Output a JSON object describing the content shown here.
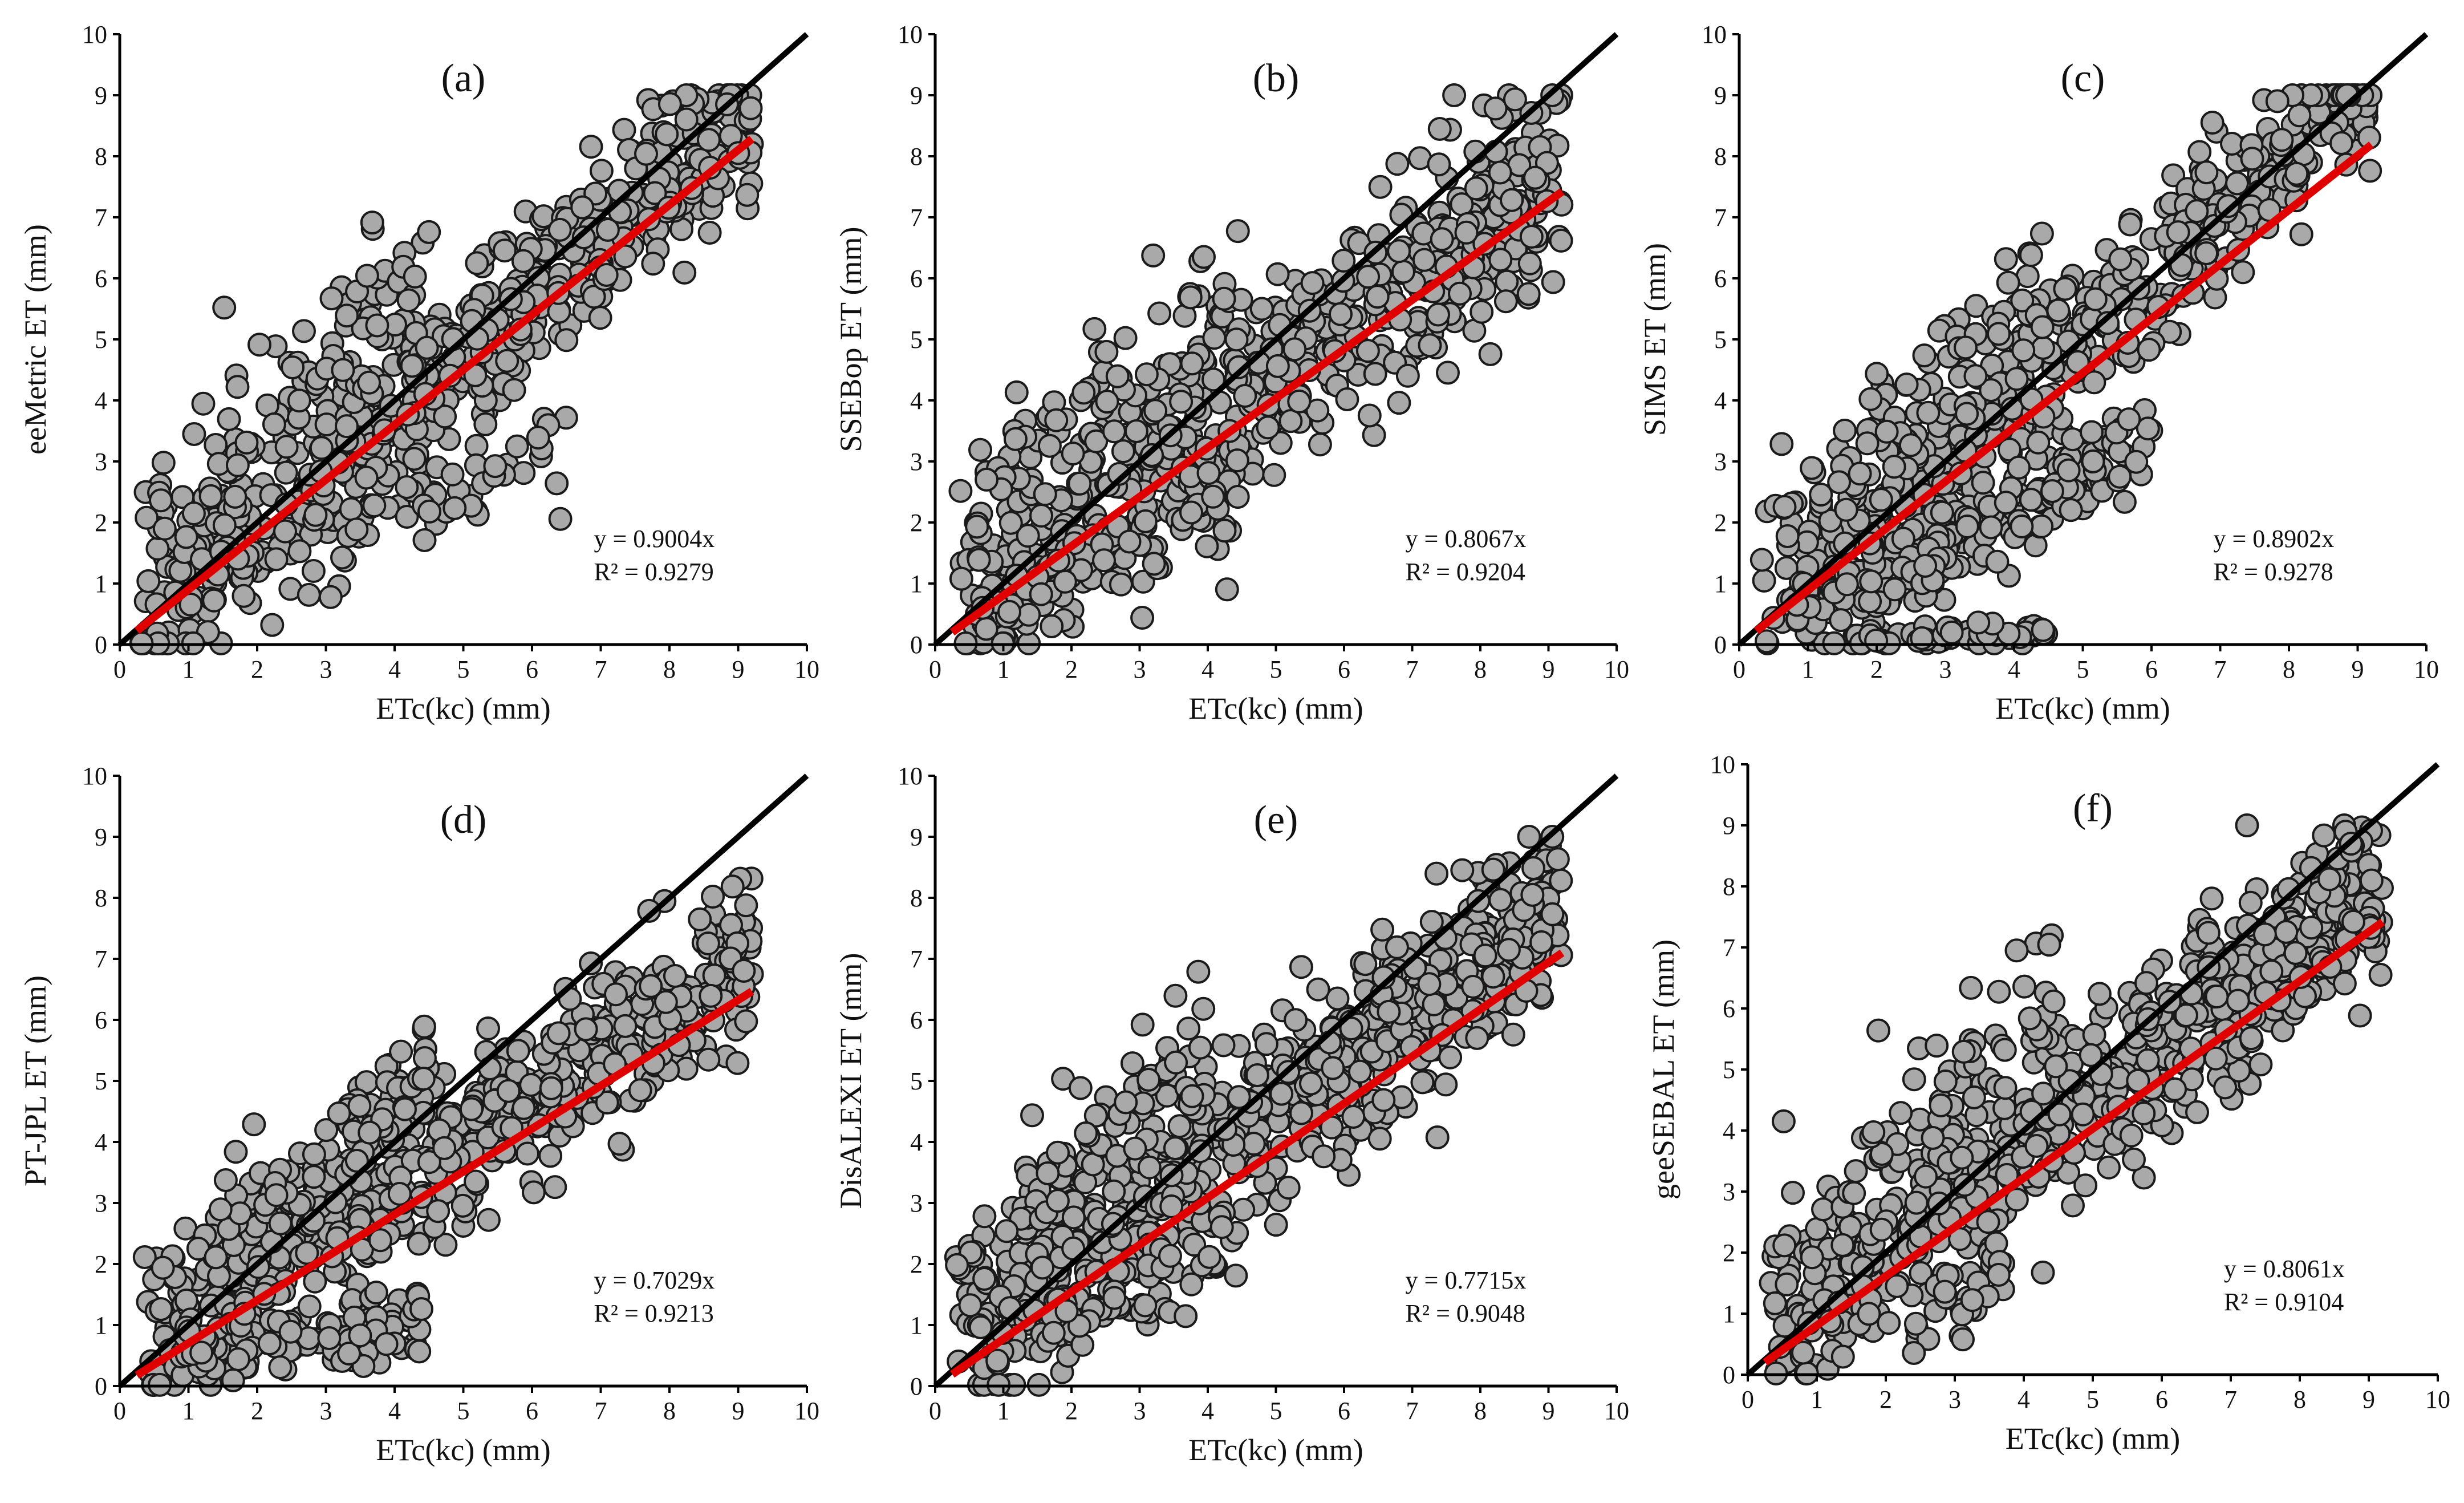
{
  "figure": {
    "background": "#ffffff",
    "marker_fill": "#a9a9a9",
    "marker_edge": "#1a1a1a",
    "fit_color": "#e00000",
    "line_color": "#000000"
  },
  "chart_data": [
    {
      "panel": "(a)",
      "type": "scatter",
      "ylabel": "eeMetric ET (mm)",
      "xlabel": "ETc(kc) (mm)",
      "xlim": [
        0,
        10
      ],
      "ylim": [
        0,
        10
      ],
      "xticks": [
        "0",
        "1",
        "2",
        "3",
        "4",
        "5",
        "6",
        "7",
        "8",
        "9",
        "10"
      ],
      "yticks": [
        "0",
        "1",
        "2",
        "3",
        "4",
        "5",
        "6",
        "7",
        "8",
        "9",
        "10"
      ],
      "fit_slope": 0.9004,
      "fit_xmax": 9.2,
      "equation": "y = 0.9004x",
      "r2": "R² = 0.9279",
      "n_points": 750,
      "seed": 11,
      "cloud": [
        {
          "frac": 0.78,
          "m": 0.93,
          "b": 0.15,
          "sd": 0.75,
          "xmin": 0.3,
          "xmax": 9.2
        },
        {
          "frac": 0.14,
          "m": 0.95,
          "b": 1.6,
          "sd": 0.8,
          "xmin": 0.3,
          "xmax": 4.5
        },
        {
          "frac": 0.08,
          "m": 0.45,
          "b": 0.3,
          "sd": 0.4,
          "xmin": 1.0,
          "xmax": 6.5
        }
      ]
    },
    {
      "panel": "(b)",
      "type": "scatter",
      "ylabel": "SSEBop ET  (mm)",
      "xlabel": "ETc(kc) (mm)",
      "xlim": [
        0,
        10
      ],
      "ylim": [
        0,
        10
      ],
      "xticks": [
        "0",
        "1",
        "2",
        "3",
        "4",
        "5",
        "6",
        "7",
        "8",
        "9",
        "10"
      ],
      "yticks": [
        "0",
        "1",
        "2",
        "3",
        "4",
        "5",
        "6",
        "7",
        "8",
        "9",
        "10"
      ],
      "fit_slope": 0.8067,
      "fit_xmax": 9.2,
      "equation": "y = 0.8067x",
      "r2": "R² = 0.9204",
      "n_points": 750,
      "seed": 23,
      "cloud": [
        {
          "frac": 0.8,
          "m": 0.82,
          "b": 0.3,
          "sd": 0.8,
          "xmin": 0.3,
          "xmax": 9.2
        },
        {
          "frac": 0.12,
          "m": 0.9,
          "b": 1.7,
          "sd": 0.8,
          "xmin": 0.3,
          "xmax": 4.5
        },
        {
          "frac": 0.08,
          "m": 0.5,
          "b": 0.3,
          "sd": 0.4,
          "xmin": 0.5,
          "xmax": 4.5
        }
      ]
    },
    {
      "panel": "(c)",
      "type": "scatter",
      "ylabel": "SIMS ET  (mm)",
      "xlabel": "ETc(kc) (mm)",
      "xlim": [
        0,
        10
      ],
      "ylim": [
        0,
        10
      ],
      "xticks": [
        "0",
        "1",
        "2",
        "3",
        "4",
        "5",
        "6",
        "7",
        "8",
        "9",
        "10"
      ],
      "yticks": [
        "0",
        "1",
        "2",
        "3",
        "4",
        "5",
        "6",
        "7",
        "8",
        "9",
        "10"
      ],
      "fit_slope": 0.8902,
      "fit_xmax": 9.2,
      "equation": "y = 0.8902x",
      "r2": "R² = 0.9278",
      "n_points": 800,
      "seed": 37,
      "cloud": [
        {
          "frac": 0.55,
          "m": 1.0,
          "b": 0.0,
          "sd": 0.6,
          "xmin": 0.3,
          "xmax": 9.2
        },
        {
          "frac": 0.12,
          "m": 1.0,
          "b": 1.4,
          "sd": 0.55,
          "xmin": 0.3,
          "xmax": 4.5
        },
        {
          "frac": 0.18,
          "m": 0.6,
          "b": -0.2,
          "sd": 0.4,
          "xmin": 1.5,
          "xmax": 6.0
        },
        {
          "frac": 0.08,
          "m": 0.03,
          "b": 0.05,
          "sd": 0.08,
          "xmin": 0.9,
          "xmax": 4.5
        },
        {
          "frac": 0.07,
          "m": 0.3,
          "b": 0.4,
          "sd": 0.3,
          "xmin": 0.5,
          "xmax": 3.0
        }
      ]
    },
    {
      "panel": "(d)",
      "type": "scatter",
      "ylabel": "PT-JPL ET (mm)",
      "xlabel": "ETc(kc) (mm)",
      "xlim": [
        0,
        10
      ],
      "ylim": [
        0,
        10
      ],
      "xticks": [
        "0",
        "1",
        "2",
        "3",
        "4",
        "5",
        "6",
        "7",
        "8",
        "9",
        "10"
      ],
      "yticks": [
        "0",
        "1",
        "2",
        "3",
        "4",
        "5",
        "6",
        "7",
        "8",
        "9",
        "10"
      ],
      "fit_slope": 0.7029,
      "fit_xmax": 9.2,
      "equation": "y = 0.7029x",
      "r2": "R² = 0.9213",
      "n_points": 800,
      "seed": 53,
      "cloud": [
        {
          "frac": 0.7,
          "m": 0.74,
          "b": 0.3,
          "sd": 0.65,
          "xmin": 0.3,
          "xmax": 9.2
        },
        {
          "frac": 0.15,
          "m": 0.95,
          "b": 0.9,
          "sd": 0.55,
          "xmin": 0.3,
          "xmax": 4.5
        },
        {
          "frac": 0.15,
          "m": 0.15,
          "b": 0.4,
          "sd": 0.25,
          "xmin": 0.8,
          "xmax": 4.5
        }
      ]
    },
    {
      "panel": "(e)",
      "type": "scatter",
      "ylabel": "DisALEXI ET (mm)",
      "xlabel": "ETc(kc) (mm)",
      "xlim": [
        0,
        10
      ],
      "ylim": [
        0,
        10
      ],
      "xticks": [
        "0",
        "1",
        "2",
        "3",
        "4",
        "5",
        "6",
        "7",
        "8",
        "9",
        "10"
      ],
      "yticks": [
        "0",
        "1",
        "2",
        "3",
        "4",
        "5",
        "6",
        "7",
        "8",
        "9",
        "10"
      ],
      "fit_slope": 0.7715,
      "fit_xmax": 9.2,
      "equation": "y = 0.7715x",
      "r2": "R² = 0.9048",
      "n_points": 800,
      "seed": 71,
      "cloud": [
        {
          "frac": 0.8,
          "m": 0.8,
          "b": 0.55,
          "sd": 0.75,
          "xmin": 0.3,
          "xmax": 9.2
        },
        {
          "frac": 0.12,
          "m": 0.95,
          "b": 1.6,
          "sd": 0.7,
          "xmin": 0.3,
          "xmax": 4.0
        },
        {
          "frac": 0.08,
          "m": 0.45,
          "b": 0.3,
          "sd": 0.35,
          "xmin": 0.5,
          "xmax": 4.5
        }
      ]
    },
    {
      "panel": "(f)",
      "type": "scatter",
      "ylabel": "geeSEBAL ET (mm)",
      "xlabel": "ETc(kc) (mm)",
      "xlim": [
        0,
        10
      ],
      "ylim": [
        0,
        10
      ],
      "xticks": [
        "0",
        "1",
        "2",
        "3",
        "4",
        "5",
        "6",
        "7",
        "8",
        "9",
        "10"
      ],
      "yticks": [
        "0",
        "1",
        "2",
        "3",
        "4",
        "5",
        "6",
        "7",
        "8",
        "9",
        "10"
      ],
      "fit_slope": 0.8061,
      "fit_xmax": 9.2,
      "equation": "y = 0.8061x",
      "r2": "R² = 0.9104",
      "n_points": 750,
      "seed": 89,
      "cloud": [
        {
          "frac": 0.82,
          "m": 0.82,
          "b": 0.45,
          "sd": 0.75,
          "xmin": 0.3,
          "xmax": 9.2
        },
        {
          "frac": 0.12,
          "m": 1.0,
          "b": 1.5,
          "sd": 0.8,
          "xmin": 0.3,
          "xmax": 4.5
        },
        {
          "frac": 0.06,
          "m": 0.4,
          "b": 0.2,
          "sd": 0.4,
          "xmin": 0.6,
          "xmax": 3.8
        }
      ]
    }
  ]
}
